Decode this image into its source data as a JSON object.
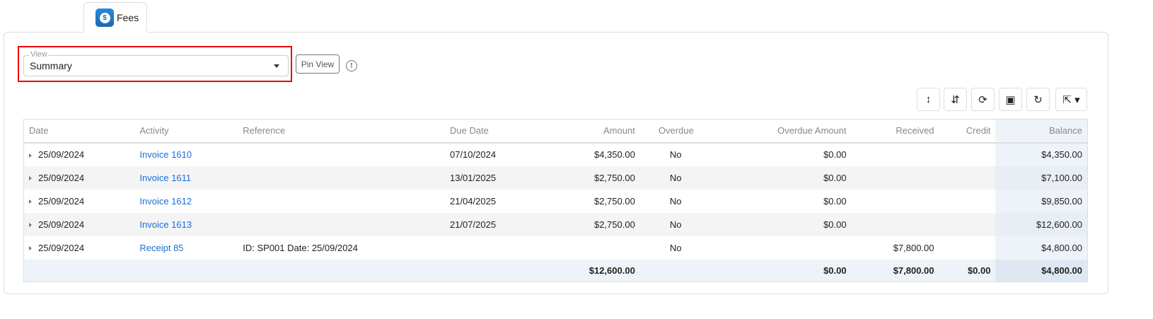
{
  "tab": {
    "label": "Fees",
    "icon": "dollar-icon"
  },
  "view": {
    "label": "View",
    "value": "Summary",
    "pin_label": "Pin View"
  },
  "toolbar": [
    {
      "name": "expand-all-button",
      "glyph": "↕"
    },
    {
      "name": "collapse-all-button",
      "glyph": "⇵"
    },
    {
      "name": "refresh-button",
      "glyph": "⟳"
    },
    {
      "name": "columns-button",
      "glyph": "▣"
    },
    {
      "name": "reset-button",
      "glyph": "↻"
    },
    {
      "name": "export-button",
      "glyph": "⇱ ▾"
    }
  ],
  "columns": [
    "Date",
    "Activity",
    "Reference",
    "Due Date",
    "Amount",
    "Overdue",
    "Overdue Amount",
    "Received",
    "Credit",
    "Balance"
  ],
  "rows": [
    {
      "date": "25/09/2024",
      "activity": "Invoice 1610",
      "reference": "",
      "due": "07/10/2024",
      "amount": "$4,350.00",
      "overdue": "No",
      "overdue_amount": "$0.00",
      "received": "",
      "credit": "",
      "balance": "$4,350.00"
    },
    {
      "date": "25/09/2024",
      "activity": "Invoice 1611",
      "reference": "",
      "due": "13/01/2025",
      "amount": "$2,750.00",
      "overdue": "No",
      "overdue_amount": "$0.00",
      "received": "",
      "credit": "",
      "balance": "$7,100.00"
    },
    {
      "date": "25/09/2024",
      "activity": "Invoice 1612",
      "reference": "",
      "due": "21/04/2025",
      "amount": "$2,750.00",
      "overdue": "No",
      "overdue_amount": "$0.00",
      "received": "",
      "credit": "",
      "balance": "$9,850.00"
    },
    {
      "date": "25/09/2024",
      "activity": "Invoice 1613",
      "reference": "",
      "due": "21/07/2025",
      "amount": "$2,750.00",
      "overdue": "No",
      "overdue_amount": "$0.00",
      "received": "",
      "credit": "",
      "balance": "$12,600.00"
    },
    {
      "date": "25/09/2024",
      "activity": "Receipt 85",
      "reference": "ID: SP001 Date: 25/09/2024",
      "due": "",
      "amount": "",
      "overdue": "No",
      "overdue_amount": "",
      "received": "$7,800.00",
      "credit": "",
      "balance": "$4,800.00"
    }
  ],
  "totals": {
    "amount": "$12,600.00",
    "overdue_amount": "$0.00",
    "received": "$7,800.00",
    "credit": "$0.00",
    "balance": "$4,800.00"
  }
}
